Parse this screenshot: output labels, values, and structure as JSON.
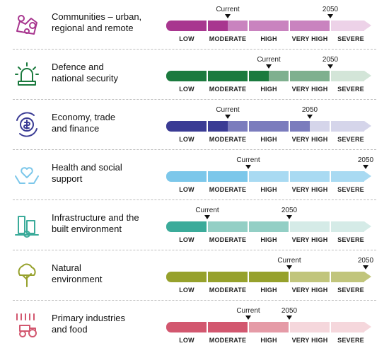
{
  "levels": [
    "LOW",
    "MODERATE",
    "HIGH",
    "VERY HIGH",
    "SEVERE"
  ],
  "marker_labels": {
    "current": "Current",
    "future": "2050"
  },
  "chart_data": {
    "type": "table",
    "scale_levels": [
      "LOW",
      "MODERATE",
      "HIGH",
      "VERY HIGH",
      "SEVERE"
    ],
    "level_index": {
      "LOW": 1,
      "MODERATE": 2,
      "HIGH": 3,
      "VERY HIGH": 4,
      "SEVERE": 5
    },
    "rows": [
      {
        "title_lines": [
          "Communities – urban,",
          "regional and remote"
        ],
        "icon": "map-pins-icon",
        "current": 1.5,
        "future": 4.0,
        "current_label": "Moderate",
        "future_label": "Very high",
        "colors": {
          "dark": "#a8368f",
          "mid": "#c983bf",
          "light": "#edd2e8"
        }
      },
      {
        "title_lines": [
          "Defence and",
          "national security"
        ],
        "icon": "siren-icon",
        "current": 2.5,
        "future": 4.0,
        "current_label": "High",
        "future_label": "Very high",
        "colors": {
          "dark": "#1b7a3e",
          "mid": "#7fb08f",
          "light": "#d3e5d8"
        }
      },
      {
        "title_lines": [
          "Economy, trade",
          "and finance"
        ],
        "icon": "dollar-cycle-icon",
        "current": 1.5,
        "future": 3.5,
        "current_label": "Moderate",
        "future_label": "Very high",
        "colors": {
          "dark": "#3a3b94",
          "mid": "#7b7cbd",
          "light": "#d5d5ea"
        }
      },
      {
        "title_lines": [
          "Health and social",
          "support"
        ],
        "icon": "heart-hands-icon",
        "current": 2.0,
        "future": 5.0,
        "current_label": "High",
        "future_label": "Severe",
        "colors": {
          "dark": "#7cc7ea",
          "mid": "#a9daf2",
          "light": "#d6eef9"
        }
      },
      {
        "title_lines": [
          "Infrastructure and the",
          "built environment"
        ],
        "icon": "buildings-gear-icon",
        "current": 1.0,
        "future": 3.0,
        "current_label": "Moderate",
        "future_label": "High",
        "colors": {
          "dark": "#3bab9a",
          "mid": "#93cfc5",
          "light": "#d5ebe7"
        }
      },
      {
        "title_lines": [
          "Natural",
          "environment"
        ],
        "icon": "tree-icon",
        "current": 3.0,
        "future": 5.0,
        "current_label": "Very high",
        "future_label": "Severe",
        "colors": {
          "dark": "#96a12c",
          "mid": "#c1c57c",
          "light": "#e5e8c6"
        }
      },
      {
        "title_lines": [
          "Primary industries",
          "and food"
        ],
        "icon": "tractor-rain-icon",
        "current": 2.0,
        "future": 3.0,
        "current_label": "High",
        "future_label": "Very high",
        "colors": {
          "dark": "#d2576f",
          "mid": "#e59ba7",
          "light": "#f5d7dc"
        }
      }
    ]
  }
}
